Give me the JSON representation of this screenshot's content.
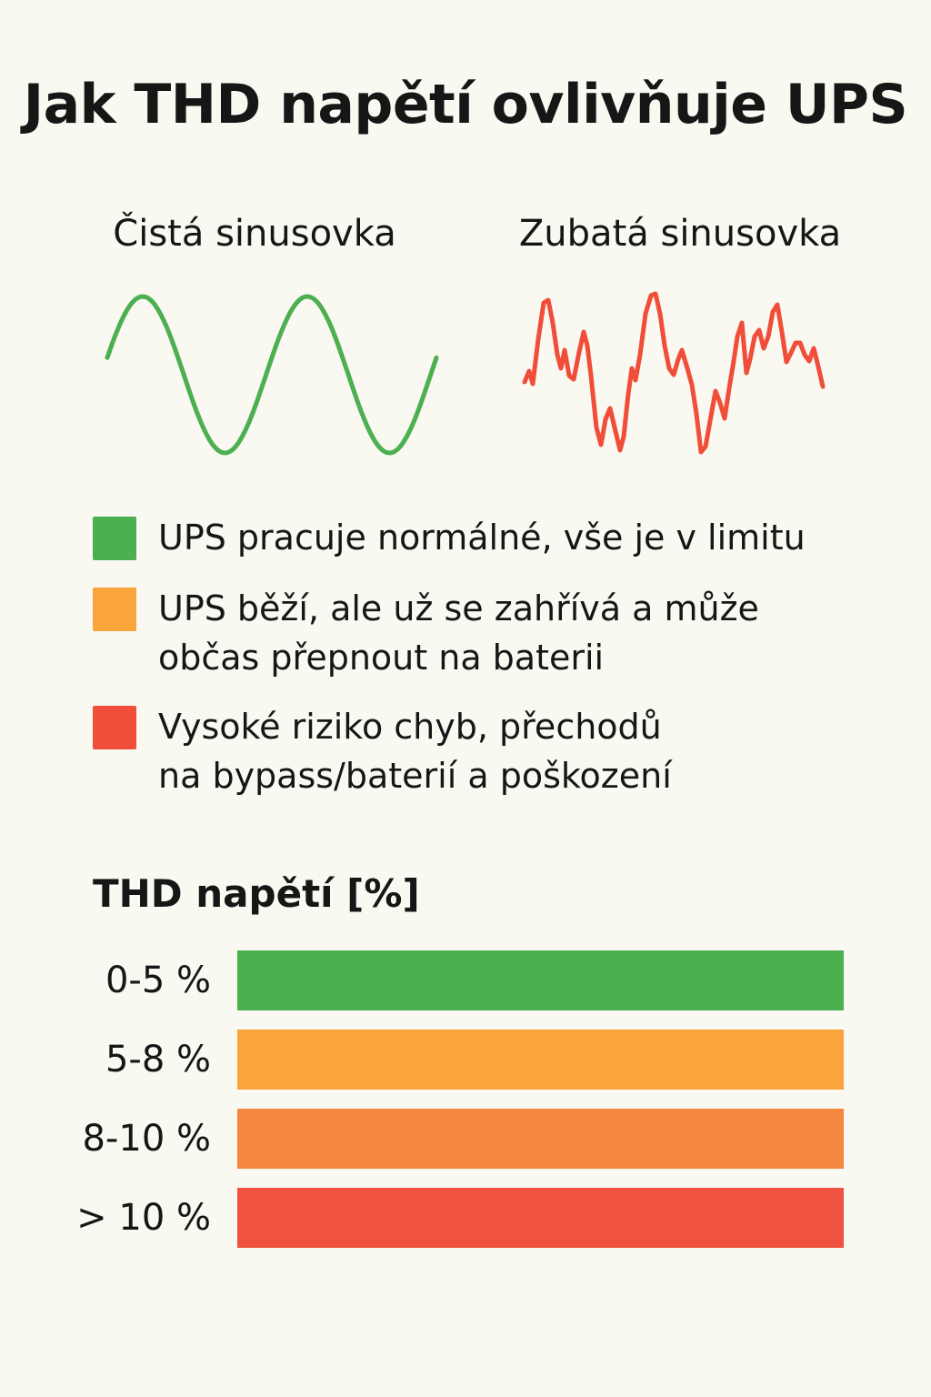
{
  "title": "Jak THD napětí ovlivňuje UPS",
  "waves": {
    "clean": {
      "label": "Čistá sinusovka",
      "color": "#4caf50"
    },
    "jagged": {
      "label": "Zubatá sinusovka",
      "color": "#f04e38"
    }
  },
  "legend": [
    {
      "text": "UPS pracuje normálné, vše je v limitu",
      "color": "#4caf50"
    },
    {
      "text": "UPS běží, ale už se zahřívá a může\nobčas přepnout na baterii",
      "color": "#faa43c"
    },
    {
      "text": "Vysoké riziko chyb, přechodů\nna bypass/baterií a poškození",
      "color": "#f04e38"
    }
  ],
  "scale": {
    "title": "THD napětí [%]",
    "rows": [
      {
        "label": "0-5 %",
        "color": "#4caf50"
      },
      {
        "label": "5-8 %",
        "color": "#faa43c"
      },
      {
        "label": "8-10 %",
        "color": "#f6873e"
      },
      {
        "label": "> 10 %",
        "color": "#ef5340"
      }
    ]
  }
}
